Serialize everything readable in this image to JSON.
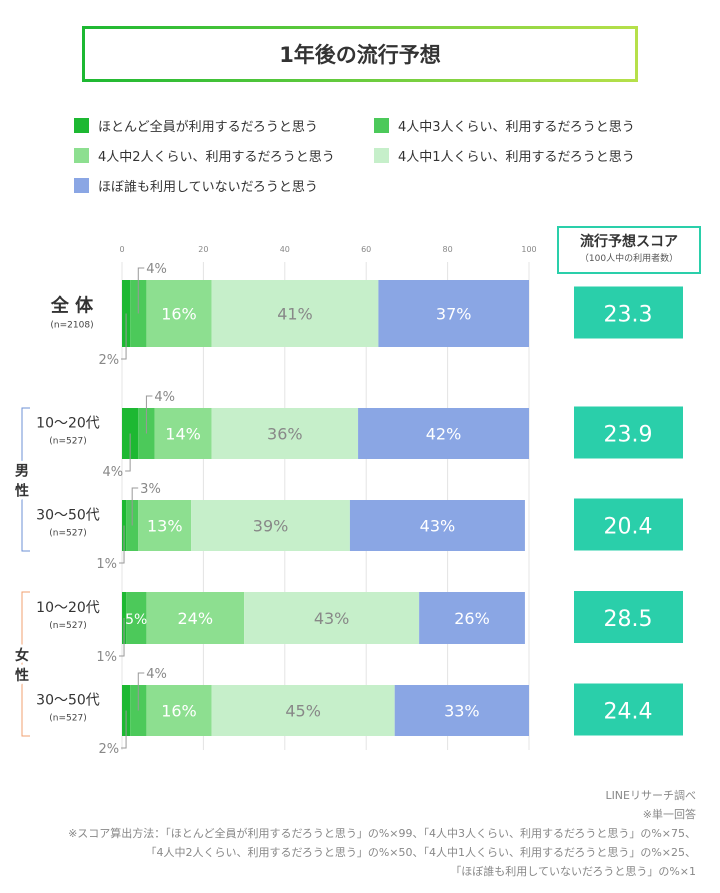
{
  "title": "1年後の流行予想",
  "score_header": {
    "title": "流行予想スコア",
    "subtitle": "（100人中の利用者数）"
  },
  "groups": [
    {
      "label": "男\n性",
      "color": "#6d90d6"
    },
    {
      "label": "女\n性",
      "color": "#f0a070"
    }
  ],
  "notes": [
    "LINEリサーチ調べ",
    "※単一回答",
    "※スコア算出方法：「ほとんど全員が利用するだろうと思う」の%×99、「4人中3人くらい、利用するだろうと思う」の%×75、",
    "「4人中2人くらい、利用するだろうと思う」の%×50、「4人中1人くらい、利用するだろうと思う」の%×25、",
    "「ほぼ誰も利用していないだろうと思う」の%×1"
  ],
  "chart_data": {
    "type": "bar",
    "orientation": "horizontal",
    "stacked": true,
    "xlim": [
      0,
      100
    ],
    "x_ticks": [
      "0",
      "20",
      "40",
      "60",
      "80",
      "100"
    ],
    "grid": true,
    "legend_position": "top",
    "unit": "%",
    "series": [
      {
        "name": "ほとんど全員が利用するだろうと思う",
        "color": "#1db832",
        "values": [
          2,
          4,
          1,
          1,
          2
        ]
      },
      {
        "name": "4人中3人くらい、利用するだろうと思う",
        "color": "#4cc95a",
        "values": [
          4,
          4,
          3,
          5,
          4
        ]
      },
      {
        "name": "4人中2人くらい、利用するだろうと思う",
        "color": "#8ddf90",
        "values": [
          16,
          14,
          13,
          24,
          16
        ]
      },
      {
        "name": "4人中1人くらい、利用するだろうと思う",
        "color": "#c6efca",
        "values": [
          41,
          36,
          39,
          43,
          45
        ]
      },
      {
        "name": "ほぼ誰も利用していないだろうと思う",
        "color": "#8aa6e4",
        "values": [
          37,
          42,
          43,
          26,
          33
        ]
      }
    ],
    "categories": [
      {
        "label": "全 体",
        "n": "(n=2108)",
        "score": "23.3"
      },
      {
        "label": "10～20代",
        "n": "(n=527)",
        "score": "23.9"
      },
      {
        "label": "30～50代",
        "n": "(n=527)",
        "score": "20.4"
      },
      {
        "label": "10～20代",
        "n": "(n=527)",
        "score": "28.5"
      },
      {
        "label": "30～50代",
        "n": "(n=527)",
        "score": "24.4"
      }
    ],
    "score_color": "#2acfaa"
  }
}
